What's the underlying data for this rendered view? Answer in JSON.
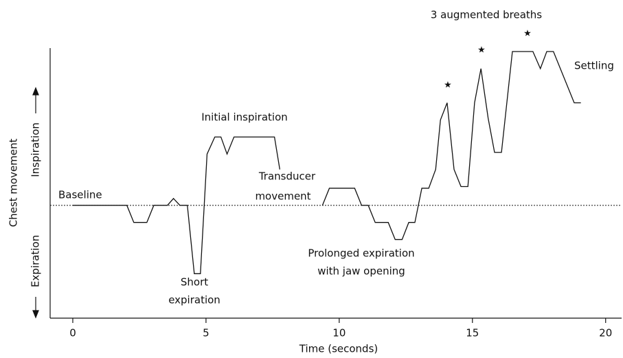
{
  "chart_data": {
    "type": "line",
    "x_label": "Time (seconds)",
    "y_label": "Chest movement",
    "y_label_up": "Inspiration",
    "y_label_down": "Expiration",
    "xlim": [
      -0.85,
      20.6
    ],
    "ylim": [
      -6.6,
      9.2
    ],
    "xticks": [
      0,
      5,
      10,
      15,
      20
    ],
    "reference_line": 0,
    "color": "#111111",
    "x": [
      0,
      2.03,
      2.29,
      2.78,
      3.04,
      3.55,
      3.78,
      4.02,
      4.3,
      4.56,
      4.79,
      5.04,
      5.33,
      5.56,
      5.79,
      6.05,
      7.57,
      7.77,
      null,
      9.37,
      9.63,
      10.58,
      10.84,
      11.09,
      11.35,
      11.84,
      12.1,
      12.36,
      12.61,
      12.84,
      13.1,
      13.36,
      13.62,
      13.8,
      14.05,
      14.31,
      14.57,
      14.83,
      15.08,
      15.32,
      15.59,
      15.83,
      16.09,
      16.5,
      17.27,
      17.55,
      17.79,
      18.04,
      18.82,
      19.07
    ],
    "values": [
      0,
      0,
      -1,
      -1,
      0,
      0,
      0.4,
      0,
      0,
      -4,
      -4,
      3,
      4,
      4,
      3,
      4,
      4,
      2.1,
      null,
      0,
      1,
      1,
      0,
      0,
      -1,
      -1,
      -2,
      -2,
      -1,
      -1,
      1,
      1,
      2.1,
      5,
      6,
      2.1,
      1.1,
      1.1,
      6,
      8,
      5.1,
      3.1,
      3.1,
      9,
      9,
      8,
      9,
      9,
      6,
      6
    ],
    "annotations": [
      "Baseline",
      "Short",
      "expiration",
      "Initial inspiration",
      "Transducer",
      "movement",
      "Prolonged expiration",
      "with jaw opening",
      "3 augmented breaths",
      "Settling",
      "★",
      "★",
      "★"
    ]
  }
}
